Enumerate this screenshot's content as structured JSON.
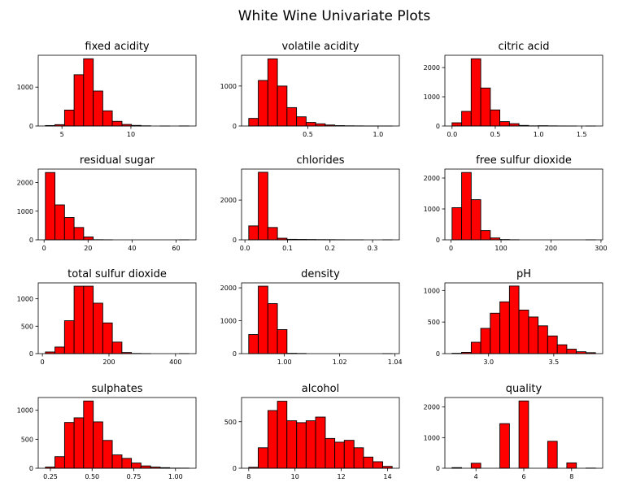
{
  "title": "White Wine Univariate Plots",
  "chart_data": [
    {
      "type": "histogram",
      "title": "fixed acidity",
      "color": "#ff0000",
      "bins": [
        3.8,
        4.49,
        5.19,
        5.88,
        6.57,
        7.27,
        7.96,
        8.65,
        9.35,
        10.04,
        10.73,
        11.43,
        12.12,
        12.81,
        13.51,
        14.2
      ],
      "values": [
        12,
        35,
        410,
        1320,
        1730,
        900,
        390,
        120,
        40,
        15,
        5,
        0,
        1,
        0,
        2
      ],
      "xlim": [
        3.28,
        14.72
      ],
      "ylim": [
        0,
        1820
      ],
      "xticks": [
        5,
        10
      ],
      "yticks": [
        0,
        1000
      ]
    },
    {
      "type": "histogram",
      "title": "volatile acidity",
      "color": "#ff0000",
      "bins": [
        0.08,
        0.148,
        0.216,
        0.284,
        0.352,
        0.42,
        0.488,
        0.556,
        0.624,
        0.692,
        0.76,
        0.828,
        0.896,
        0.964,
        1.032,
        1.1
      ],
      "values": [
        190,
        1140,
        1680,
        1000,
        460,
        230,
        90,
        55,
        25,
        10,
        5,
        3,
        1,
        1,
        1
      ],
      "xlim": [
        0.029,
        1.151
      ],
      "ylim": [
        0,
        1770
      ],
      "xticks": [
        0.5,
        {
          "value": 1,
          "label": "1.0"
        }
      ],
      "yticks": [
        0,
        1000
      ]
    },
    {
      "type": "histogram",
      "title": "citric acid",
      "color": "#ff0000",
      "bins": [
        0,
        0.111,
        0.221,
        0.332,
        0.443,
        0.553,
        0.664,
        0.775,
        0.885,
        0.996,
        1.107,
        1.217,
        1.328,
        1.439,
        1.549,
        1.66
      ],
      "values": [
        110,
        500,
        2300,
        1300,
        550,
        150,
        80,
        20,
        5,
        10,
        5,
        2,
        1,
        0,
        1
      ],
      "xlim": [
        -0.083,
        1.743
      ],
      "ylim": [
        0,
        2420
      ],
      "xticks": [
        {
          "value": 0,
          "label": "0.0"
        },
        0.5,
        {
          "value": 1,
          "label": "1.0"
        },
        1.5
      ],
      "yticks": [
        0,
        1000,
        2000
      ]
    },
    {
      "type": "histogram",
      "title": "residual sugar",
      "color": "#ff0000",
      "bins": [
        0.6,
        4.95,
        9.29,
        13.64,
        17.99,
        22.33,
        26.68,
        31.03,
        35.37,
        39.72,
        44.07,
        48.41,
        52.76,
        57.11,
        61.45,
        65.8
      ],
      "values": [
        2350,
        1220,
        780,
        430,
        100,
        5,
        2,
        0,
        0,
        0,
        0,
        0,
        0,
        0,
        1
      ],
      "xlim": [
        -2.66,
        69.06
      ],
      "ylim": [
        0,
        2470
      ],
      "xticks": [
        0,
        20,
        40,
        60
      ],
      "yticks": [
        0,
        1000,
        2000
      ]
    },
    {
      "type": "histogram",
      "title": "chlorides",
      "color": "#ff0000",
      "bins": [
        0.009,
        0.0315,
        0.0539,
        0.0764,
        0.0989,
        0.1213,
        0.1438,
        0.1663,
        0.1887,
        0.2112,
        0.2337,
        0.2561,
        0.2786,
        0.3011,
        0.3235,
        0.346
      ],
      "values": [
        700,
        3400,
        620,
        80,
        25,
        20,
        15,
        10,
        8,
        5,
        2,
        1,
        0,
        0,
        1
      ],
      "xlim": [
        -0.0079,
        0.3629
      ],
      "ylim": [
        0,
        3560
      ],
      "xticks": [
        {
          "value": 0,
          "label": "0.0"
        },
        0.1,
        0.2,
        0.3
      ],
      "yticks": [
        0,
        2000
      ]
    },
    {
      "type": "histogram",
      "title": "free sulfur dioxide",
      "color": "#ff0000",
      "bins": [
        2,
        21.13,
        40.27,
        59.4,
        78.53,
        97.67,
        116.8,
        135.93,
        155.07,
        174.2,
        193.33,
        212.47,
        231.6,
        250.73,
        269.87,
        289
      ],
      "values": [
        1040,
        2180,
        1300,
        300,
        60,
        10,
        3,
        0,
        0,
        0,
        0,
        0,
        0,
        0,
        1
      ],
      "xlim": [
        -12.35,
        303.35
      ],
      "ylim": [
        0,
        2290
      ],
      "xticks": [
        0,
        100,
        200,
        300
      ],
      "yticks": [
        0,
        1000,
        2000
      ]
    },
    {
      "type": "histogram",
      "title": "total sulfur dioxide",
      "color": "#ff0000",
      "bins": [
        9,
        37.73,
        66.47,
        95.2,
        123.93,
        152.67,
        181.4,
        210.13,
        238.87,
        267.6,
        296.33,
        325.07,
        353.8,
        382.53,
        411.27,
        440
      ],
      "values": [
        30,
        120,
        600,
        1230,
        1230,
        920,
        560,
        210,
        20,
        3,
        1,
        0,
        0,
        0,
        1
      ],
      "xlim": [
        -12.55,
        461.55
      ],
      "ylim": [
        0,
        1290
      ],
      "xticks": [
        0,
        200,
        400
      ],
      "yticks": [
        0,
        500,
        1000
      ]
    },
    {
      "type": "histogram",
      "title": "density",
      "color": "#ff0000",
      "bins": [
        0.98711,
        0.99057,
        0.99403,
        0.99748,
        1.00094,
        1.0044,
        1.00786,
        1.01132,
        1.01477,
        1.01823,
        1.02169,
        1.02515,
        1.0286,
        1.03206,
        1.03552,
        1.03898
      ],
      "values": [
        580,
        2050,
        1520,
        730,
        10,
        5,
        0,
        0,
        0,
        0,
        0,
        0,
        0,
        0,
        1
      ],
      "xlim": [
        0.98452,
        1.04157
      ],
      "ylim": [
        0,
        2150
      ],
      "xticks": [
        {
          "value": 1,
          "label": "1.00"
        },
        1.02,
        1.04
      ],
      "yticks": [
        0,
        1000,
        2000
      ]
    },
    {
      "type": "histogram",
      "title": "pH",
      "color": "#ff0000",
      "bins": [
        2.72,
        2.793,
        2.867,
        2.94,
        3.013,
        3.087,
        3.16,
        3.233,
        3.307,
        3.38,
        3.453,
        3.527,
        3.6,
        3.673,
        3.747,
        3.82
      ],
      "values": [
        5,
        20,
        180,
        400,
        640,
        820,
        1070,
        690,
        580,
        440,
        280,
        140,
        70,
        30,
        15
      ],
      "xlim": [
        2.665,
        3.875
      ],
      "ylim": [
        0,
        1120
      ],
      "xticks": [
        {
          "value": 3,
          "label": "3.0"
        },
        3.5
      ],
      "yticks": [
        0,
        500,
        1000
      ]
    },
    {
      "type": "histogram",
      "title": "sulphates",
      "color": "#ff0000",
      "bins": [
        0.22,
        0.277,
        0.335,
        0.392,
        0.449,
        0.507,
        0.564,
        0.621,
        0.679,
        0.736,
        0.793,
        0.851,
        0.908,
        0.965,
        1.023,
        1.08
      ],
      "values": [
        20,
        200,
        790,
        870,
        1160,
        800,
        480,
        230,
        170,
        90,
        40,
        20,
        10,
        2,
        2
      ],
      "xlim": [
        0.177,
        1.123
      ],
      "ylim": [
        0,
        1220
      ],
      "xticks": [
        0.25,
        {
          "value": 0.5,
          "label": "0.50"
        },
        0.75,
        {
          "value": 1,
          "label": "1.00"
        }
      ],
      "yticks": [
        0,
        500,
        1000
      ]
    },
    {
      "type": "histogram",
      "title": "alcohol",
      "color": "#ff0000",
      "bins": [
        8,
        8.41,
        8.83,
        9.24,
        9.65,
        10.07,
        10.48,
        10.89,
        11.31,
        11.72,
        12.13,
        12.55,
        12.96,
        13.37,
        13.79,
        14.2
      ],
      "values": [
        10,
        220,
        620,
        720,
        510,
        490,
        510,
        550,
        320,
        280,
        300,
        220,
        120,
        70,
        20
      ],
      "xlim": [
        7.69,
        14.51
      ],
      "ylim": [
        0,
        760
      ],
      "xticks": [
        8,
        10,
        12,
        14
      ],
      "yticks": [
        0,
        500
      ]
    },
    {
      "type": "histogram",
      "title": "quality",
      "color": "#ff0000",
      "bins": [
        3,
        3.4,
        3.8,
        4.2,
        4.6,
        5,
        5.4,
        5.8,
        6.2,
        6.6,
        7,
        7.4,
        7.8,
        8.2,
        8.6,
        9
      ],
      "values": [
        20,
        0,
        163,
        0,
        0,
        1457,
        0,
        2198,
        0,
        0,
        880,
        0,
        175,
        0,
        5
      ],
      "xlim": [
        2.7,
        9.3
      ],
      "ylim": [
        0,
        2310
      ],
      "xticks": [
        4,
        6,
        8
      ],
      "yticks": [
        0,
        1000,
        2000
      ]
    }
  ]
}
